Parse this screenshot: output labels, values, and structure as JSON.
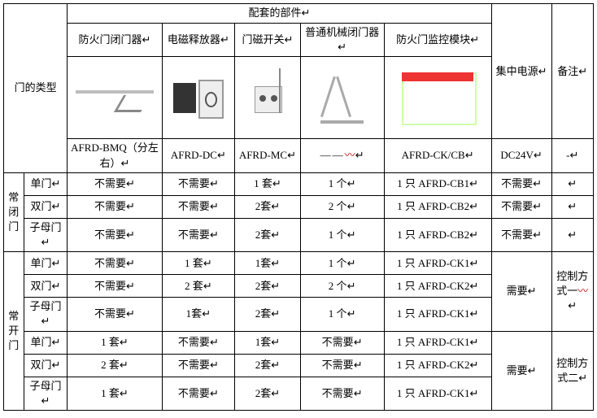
{
  "header": {
    "door_type": "门的类型",
    "components": "配套的部件",
    "cols": {
      "closer": "防火门闭门器",
      "em_release": "电磁释放器",
      "mag_switch": "门磁开关",
      "mech_closer": "普通机械闭门器",
      "monitor": "防火门监控模块",
      "power": "集中电源",
      "remark": "备注"
    },
    "models": {
      "closer": "AFRD-BMQ（分左右）",
      "em_release": "AFRD-DC",
      "mag_switch": "AFRD-MC",
      "mech_closer": "——",
      "monitor": "AFRD-CK/CB",
      "power": "DC24V",
      "remark": "-"
    }
  },
  "sym": {
    "ret": "↵",
    "wave": "〰"
  },
  "groups": {
    "closed": {
      "label": "常闭门",
      "rows": [
        {
          "door": "单门",
          "closer": "不需要",
          "em": "不需要",
          "mag": "1 套",
          "mech": "1 个",
          "mon": "1 只 AFRD-CB1",
          "pwr": "不需要",
          "rmk": ""
        },
        {
          "door": "双门",
          "closer": "不需要",
          "em": "不需要",
          "mag": "2套",
          "mech": "2 个",
          "mon": "1 只 AFRD-CB2",
          "pwr": "不需要",
          "rmk": ""
        },
        {
          "door": "子母门",
          "closer": "不需要",
          "em": "不需要",
          "mag": "2套",
          "mech": "1 个",
          "mon": "1 只 AFRD-CB2",
          "pwr": "不需要",
          "rmk": ""
        }
      ]
    },
    "open": {
      "label": "常开门",
      "blocks": [
        {
          "rmk": "控制方式一",
          "pwr": "需要",
          "rows": [
            {
              "door": "单门",
              "closer": "不需要",
              "em": "1 套",
              "mag": "1套",
              "mech": "1 个",
              "mon": "1 只 AFRD-CK1"
            },
            {
              "door": "双门",
              "closer": "不需要",
              "em": "2 套",
              "mag": "2套",
              "mech": "2 个",
              "mon": "1 只 AFRD-CK2"
            },
            {
              "door": "子母门",
              "closer": "不需要",
              "em": "1套",
              "mag": "2套",
              "mech": "1 个",
              "mon": "1 只 AFRD-CK1"
            }
          ]
        },
        {
          "rmk": "控制方式二",
          "pwr": "需要",
          "rows": [
            {
              "door": "单门",
              "closer": "1 套",
              "em": "不需要",
              "mag": "1套",
              "mech": "不需要",
              "mon": "1 只 AFRD-CK1"
            },
            {
              "door": "双门",
              "closer": "2 套",
              "em": "不需要",
              "mag": "2套",
              "mech": "不需要",
              "mon": "1 只 AFRD-CK2"
            },
            {
              "door": "子母门",
              "closer": "1 套",
              "em": "不需要",
              "mag": "2套",
              "mech": "不需要",
              "mon": "1 只 AFRD-CK1"
            }
          ]
        }
      ]
    }
  }
}
